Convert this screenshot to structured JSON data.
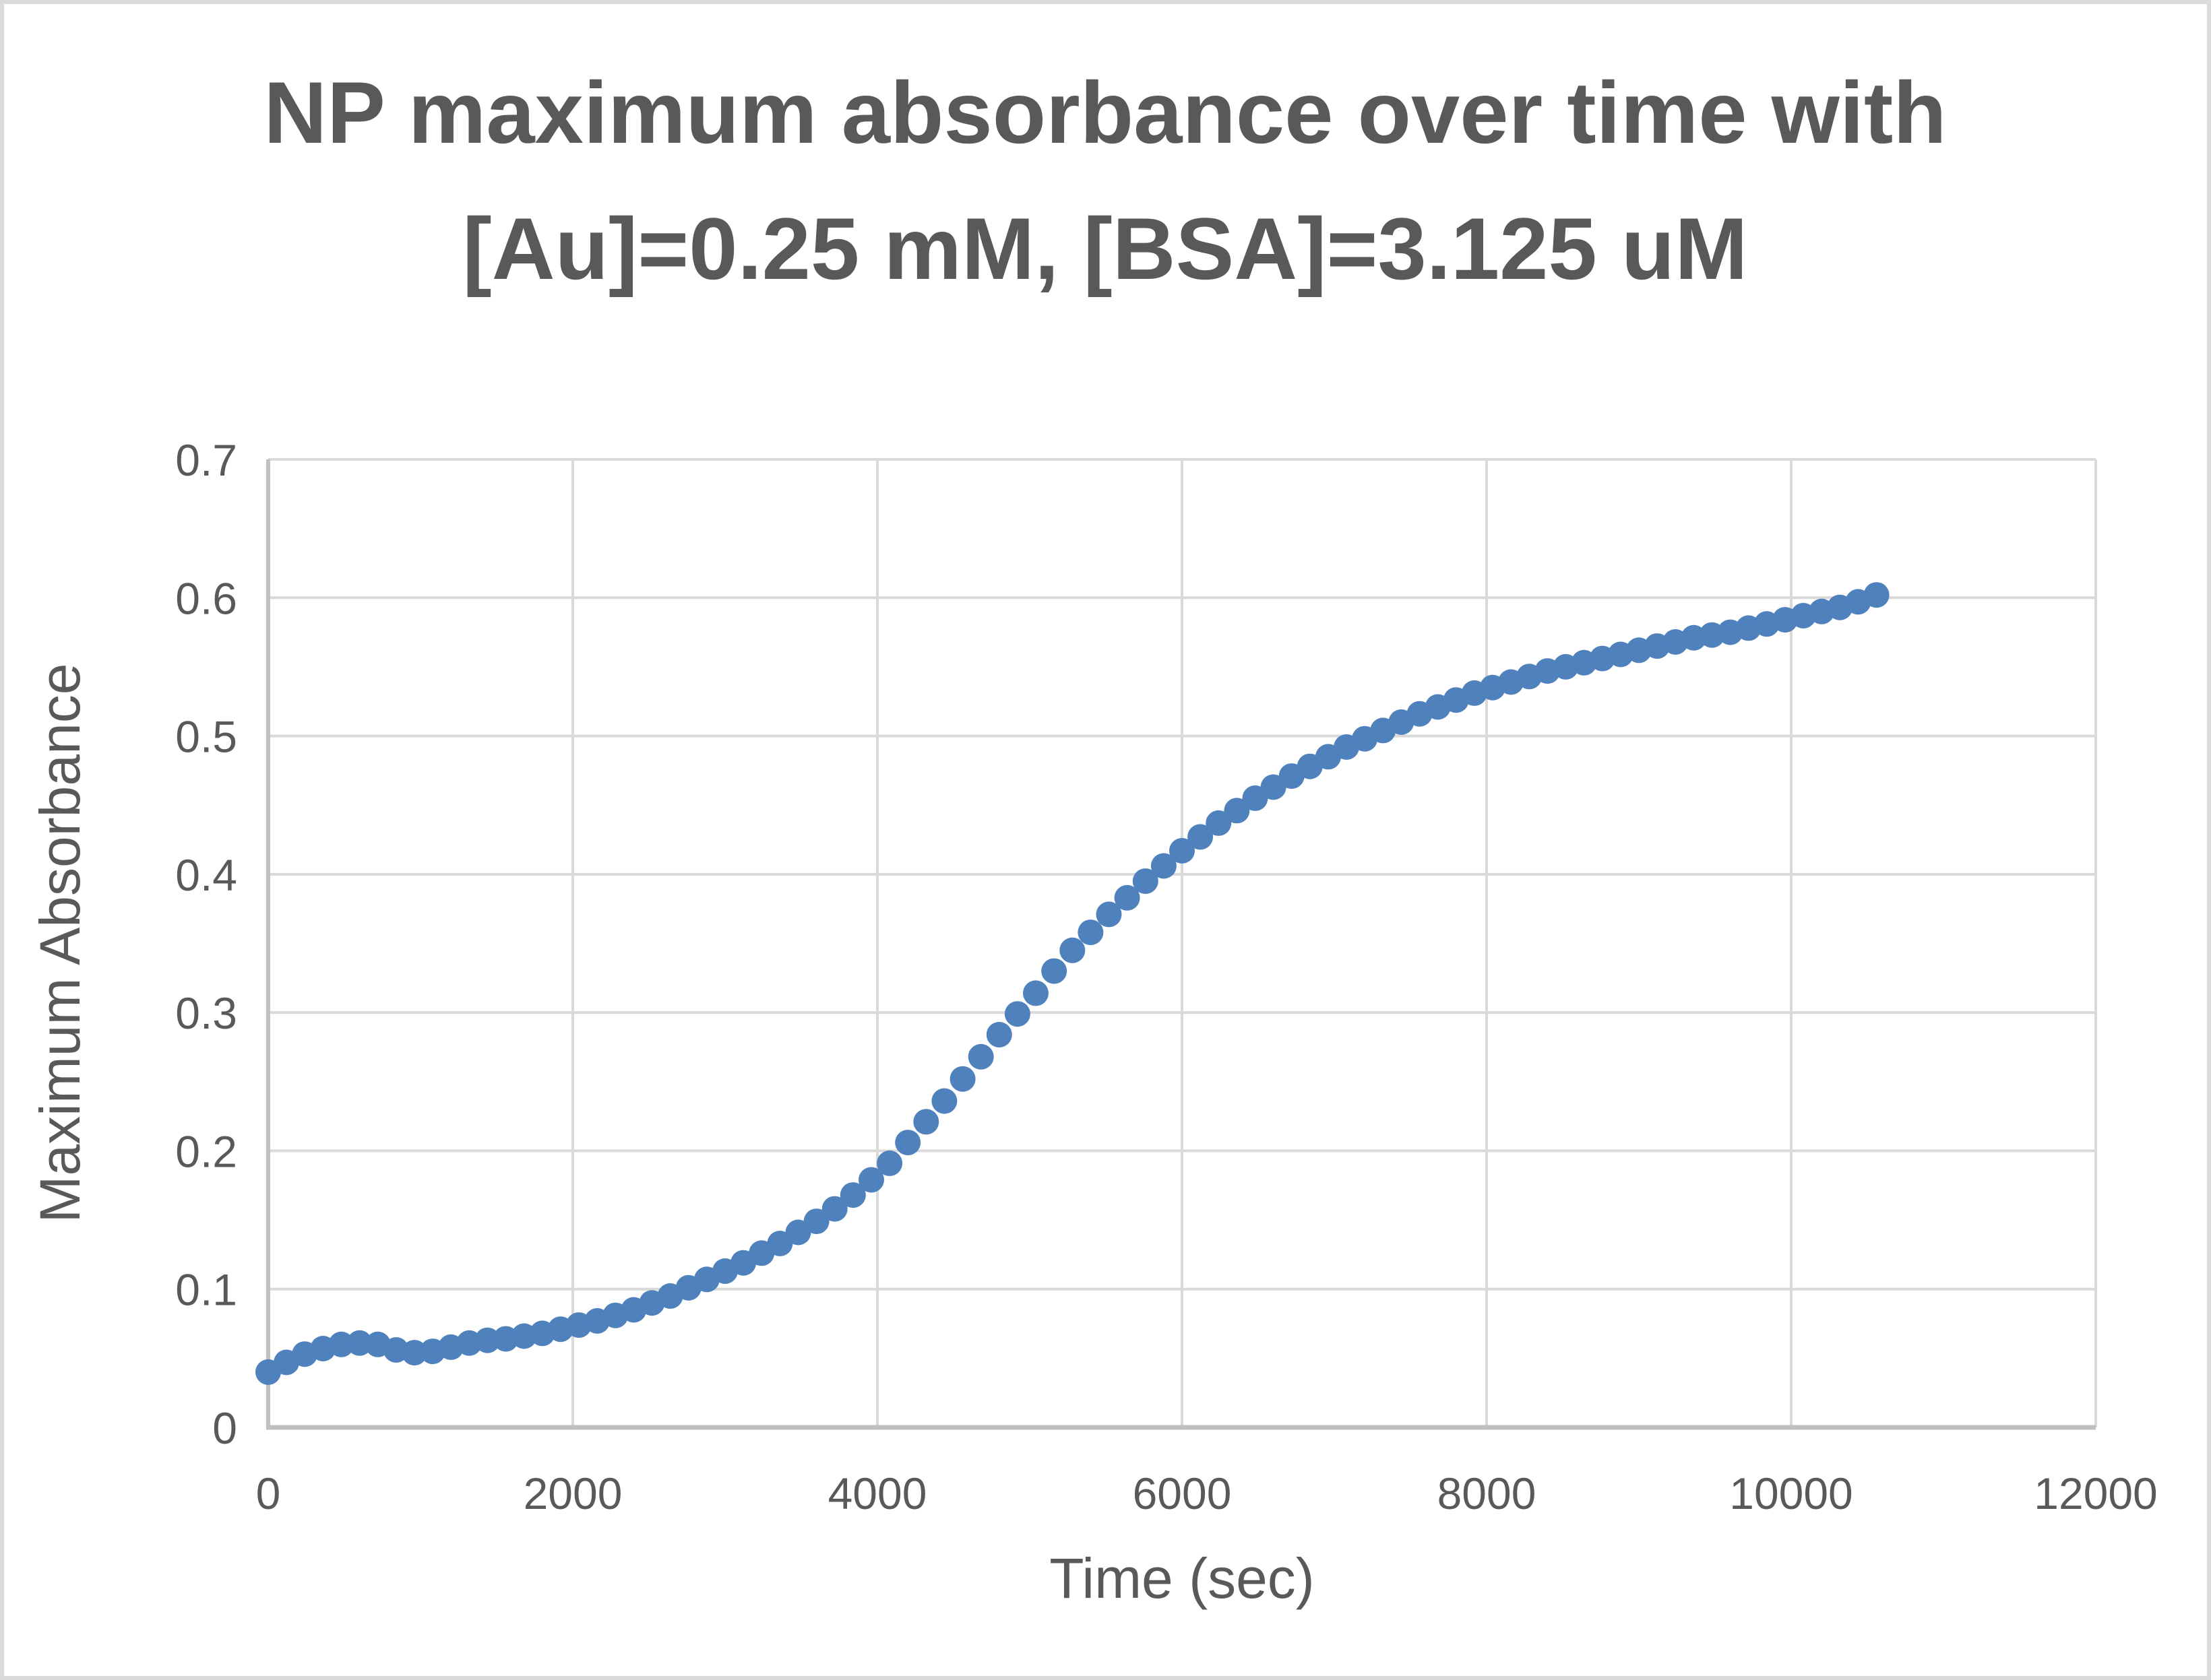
{
  "chart_data": {
    "type": "scatter",
    "title": "NP maximum absorbance over time with [Au]=0.25 mM, [BSA]=3.125 uM",
    "title_lines": [
      "NP maximum absorbance over time with",
      "[Au]=0.25 mM, [BSA]=3.125 uM"
    ],
    "xlabel": "Time (sec)",
    "ylabel": "Maximum Absorbance",
    "xlim": [
      0,
      12000
    ],
    "ylim": [
      0,
      0.7
    ],
    "grid": true,
    "legend": "none",
    "x_ticks": [
      {
        "value": 0,
        "label": "0"
      },
      {
        "value": 2000,
        "label": "2000"
      },
      {
        "value": 4000,
        "label": "4000"
      },
      {
        "value": 6000,
        "label": "6000"
      },
      {
        "value": 8000,
        "label": "8000"
      },
      {
        "value": 10000,
        "label": "10000"
      },
      {
        "value": 12000,
        "label": "12000"
      }
    ],
    "y_ticks": [
      {
        "value": 0,
        "label": "0"
      },
      {
        "value": 0.1,
        "label": "0.1"
      },
      {
        "value": 0.2,
        "label": "0.2"
      },
      {
        "value": 0.3,
        "label": "0.3"
      },
      {
        "value": 0.4,
        "label": "0.4"
      },
      {
        "value": 0.5,
        "label": "0.5"
      },
      {
        "value": 0.6,
        "label": "0.6"
      },
      {
        "value": 0.7,
        "label": "0.7"
      }
    ],
    "colors": {
      "marker": "#4F81BD",
      "gridline": "#D9D9D9",
      "axis_line": "#BFBFBF",
      "text": "#595959",
      "border": "#DBDBDB",
      "background": "#FFFFFF"
    },
    "marker_radius": 19,
    "series": [
      {
        "name": "Maximum Absorbance",
        "points": [
          [
            0,
            0.04
          ],
          [
            120,
            0.047
          ],
          [
            240,
            0.053
          ],
          [
            360,
            0.057
          ],
          [
            480,
            0.06
          ],
          [
            600,
            0.061
          ],
          [
            720,
            0.06
          ],
          [
            840,
            0.056
          ],
          [
            960,
            0.054
          ],
          [
            1080,
            0.055
          ],
          [
            1200,
            0.058
          ],
          [
            1320,
            0.061
          ],
          [
            1440,
            0.063
          ],
          [
            1560,
            0.064
          ],
          [
            1680,
            0.066
          ],
          [
            1800,
            0.068
          ],
          [
            1920,
            0.071
          ],
          [
            2040,
            0.074
          ],
          [
            2160,
            0.077
          ],
          [
            2280,
            0.081
          ],
          [
            2400,
            0.085
          ],
          [
            2520,
            0.09
          ],
          [
            2640,
            0.095
          ],
          [
            2760,
            0.101
          ],
          [
            2880,
            0.107
          ],
          [
            3000,
            0.113
          ],
          [
            3120,
            0.119
          ],
          [
            3240,
            0.126
          ],
          [
            3360,
            0.133
          ],
          [
            3480,
            0.141
          ],
          [
            3600,
            0.149
          ],
          [
            3720,
            0.158
          ],
          [
            3840,
            0.168
          ],
          [
            3960,
            0.179
          ],
          [
            4080,
            0.191
          ],
          [
            4200,
            0.206
          ],
          [
            4320,
            0.221
          ],
          [
            4440,
            0.236
          ],
          [
            4560,
            0.252
          ],
          [
            4680,
            0.268
          ],
          [
            4800,
            0.284
          ],
          [
            4920,
            0.299
          ],
          [
            5040,
            0.314
          ],
          [
            5160,
            0.33
          ],
          [
            5280,
            0.345
          ],
          [
            5400,
            0.358
          ],
          [
            5520,
            0.371
          ],
          [
            5640,
            0.383
          ],
          [
            5760,
            0.395
          ],
          [
            5880,
            0.406
          ],
          [
            6000,
            0.417
          ],
          [
            6120,
            0.427
          ],
          [
            6240,
            0.437
          ],
          [
            6360,
            0.446
          ],
          [
            6480,
            0.455
          ],
          [
            6600,
            0.463
          ],
          [
            6720,
            0.471
          ],
          [
            6840,
            0.478
          ],
          [
            6960,
            0.485
          ],
          [
            7080,
            0.492
          ],
          [
            7200,
            0.498
          ],
          [
            7320,
            0.504
          ],
          [
            7440,
            0.51
          ],
          [
            7560,
            0.516
          ],
          [
            7680,
            0.521
          ],
          [
            7800,
            0.526
          ],
          [
            7920,
            0.531
          ],
          [
            8040,
            0.535
          ],
          [
            8160,
            0.539
          ],
          [
            8280,
            0.543
          ],
          [
            8400,
            0.547
          ],
          [
            8520,
            0.55
          ],
          [
            8640,
            0.553
          ],
          [
            8760,
            0.556
          ],
          [
            8880,
            0.559
          ],
          [
            9000,
            0.562
          ],
          [
            9120,
            0.565
          ],
          [
            9240,
            0.568
          ],
          [
            9360,
            0.571
          ],
          [
            9480,
            0.573
          ],
          [
            9600,
            0.575
          ],
          [
            9720,
            0.578
          ],
          [
            9840,
            0.581
          ],
          [
            9960,
            0.584
          ],
          [
            10080,
            0.587
          ],
          [
            10200,
            0.59
          ],
          [
            10320,
            0.593
          ],
          [
            10440,
            0.597
          ],
          [
            10560,
            0.602
          ]
        ]
      }
    ]
  }
}
